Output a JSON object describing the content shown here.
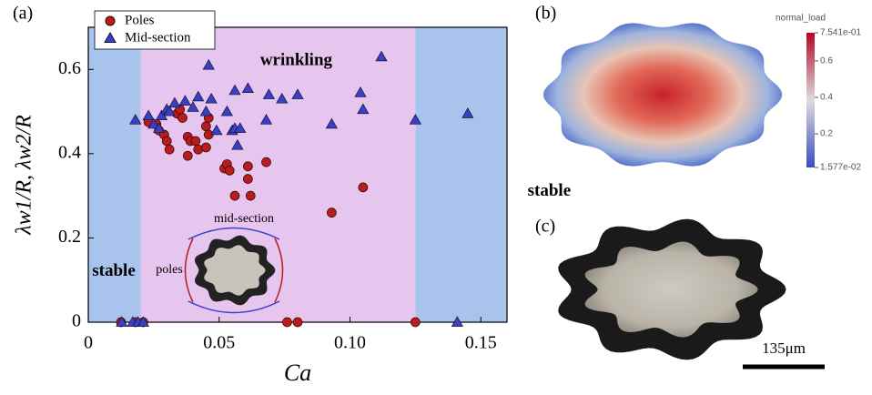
{
  "panels": [
    "(a)",
    "(b)",
    "(c)"
  ],
  "chart_data": {
    "type": "scatter",
    "xlabel": "Ca",
    "ylabel": "λw1/R, λw2/R",
    "xlim": [
      0,
      0.16
    ],
    "ylim": [
      0,
      0.7
    ],
    "xticks": [
      0,
      0.05,
      {
        "value": 0.1,
        "label": "0.10"
      },
      0.15
    ],
    "yticks": [
      0,
      0.2,
      0.4,
      0.6
    ],
    "legend": "upper left",
    "regions": [
      {
        "name": "stable",
        "from": 0,
        "to": 0.02,
        "color": "#a8c4ec"
      },
      {
        "name": "wrinkling",
        "from": 0.02,
        "to": 0.125,
        "color": "#e6c5ee"
      },
      {
        "name": "stable",
        "from": 0.125,
        "to": 0.16,
        "color": "#a8c4ec"
      }
    ],
    "inset_labels": [
      "mid-section",
      "poles"
    ],
    "series": [
      {
        "name": "Poles",
        "color": "#b81c1c",
        "marker": "circle",
        "x": [
          0.0125,
          0.018,
          0.021,
          0.076,
          0.08,
          0.125,
          0.023,
          0.026,
          0.027,
          0.029,
          0.03,
          0.031,
          0.034,
          0.036,
          0.035,
          0.038,
          0.039,
          0.038,
          0.041,
          0.042,
          0.045,
          0.045,
          0.046,
          0.046,
          0.052,
          0.053,
          0.054,
          0.056,
          0.061,
          0.061,
          0.062,
          0.068,
          0.093,
          0.105
        ],
        "y": [
          0,
          0,
          0,
          0,
          0,
          0,
          0.475,
          0.47,
          0.455,
          0.445,
          0.43,
          0.41,
          0.495,
          0.485,
          0.505,
          0.44,
          0.43,
          0.395,
          0.43,
          0.41,
          0.415,
          0.465,
          0.445,
          0.485,
          0.365,
          0.375,
          0.36,
          0.3,
          0.37,
          0.34,
          0.3,
          0.38,
          0.26,
          0.32
        ]
      },
      {
        "name": "Mid-section",
        "color": "#3b3fc4",
        "marker": "triangle",
        "x": [
          0.0128,
          0.017,
          0.019,
          0.021,
          0.141,
          0.018,
          0.023,
          0.025,
          0.027,
          0.028,
          0.03,
          0.031,
          0.033,
          0.037,
          0.04,
          0.042,
          0.045,
          0.047,
          0.049,
          0.053,
          0.055,
          0.056,
          0.058,
          0.057,
          0.056,
          0.061,
          0.069,
          0.074,
          0.08,
          0.068,
          0.093,
          0.104,
          0.105,
          0.112,
          0.125,
          0.145,
          0.046
        ],
        "y": [
          0,
          0,
          0,
          0,
          0,
          0.48,
          0.49,
          0.47,
          0.46,
          0.49,
          0.505,
          0.5,
          0.52,
          0.525,
          0.51,
          0.535,
          0.5,
          0.53,
          0.455,
          0.5,
          0.455,
          0.46,
          0.46,
          0.42,
          0.55,
          0.555,
          0.54,
          0.53,
          0.54,
          0.48,
          0.47,
          0.545,
          0.505,
          0.63,
          0.48,
          0.495,
          0.61
        ]
      }
    ]
  },
  "colorbar": {
    "title": "normal_load",
    "lim": [
      0.01577,
      0.7541
    ],
    "ticks": [
      {
        "value": 0.7541,
        "label": "7.541e-01"
      },
      0.6,
      0.4,
      0.2,
      {
        "value": 0.01577,
        "label": "1.577e-02"
      }
    ]
  },
  "scale_bar": "135μm"
}
